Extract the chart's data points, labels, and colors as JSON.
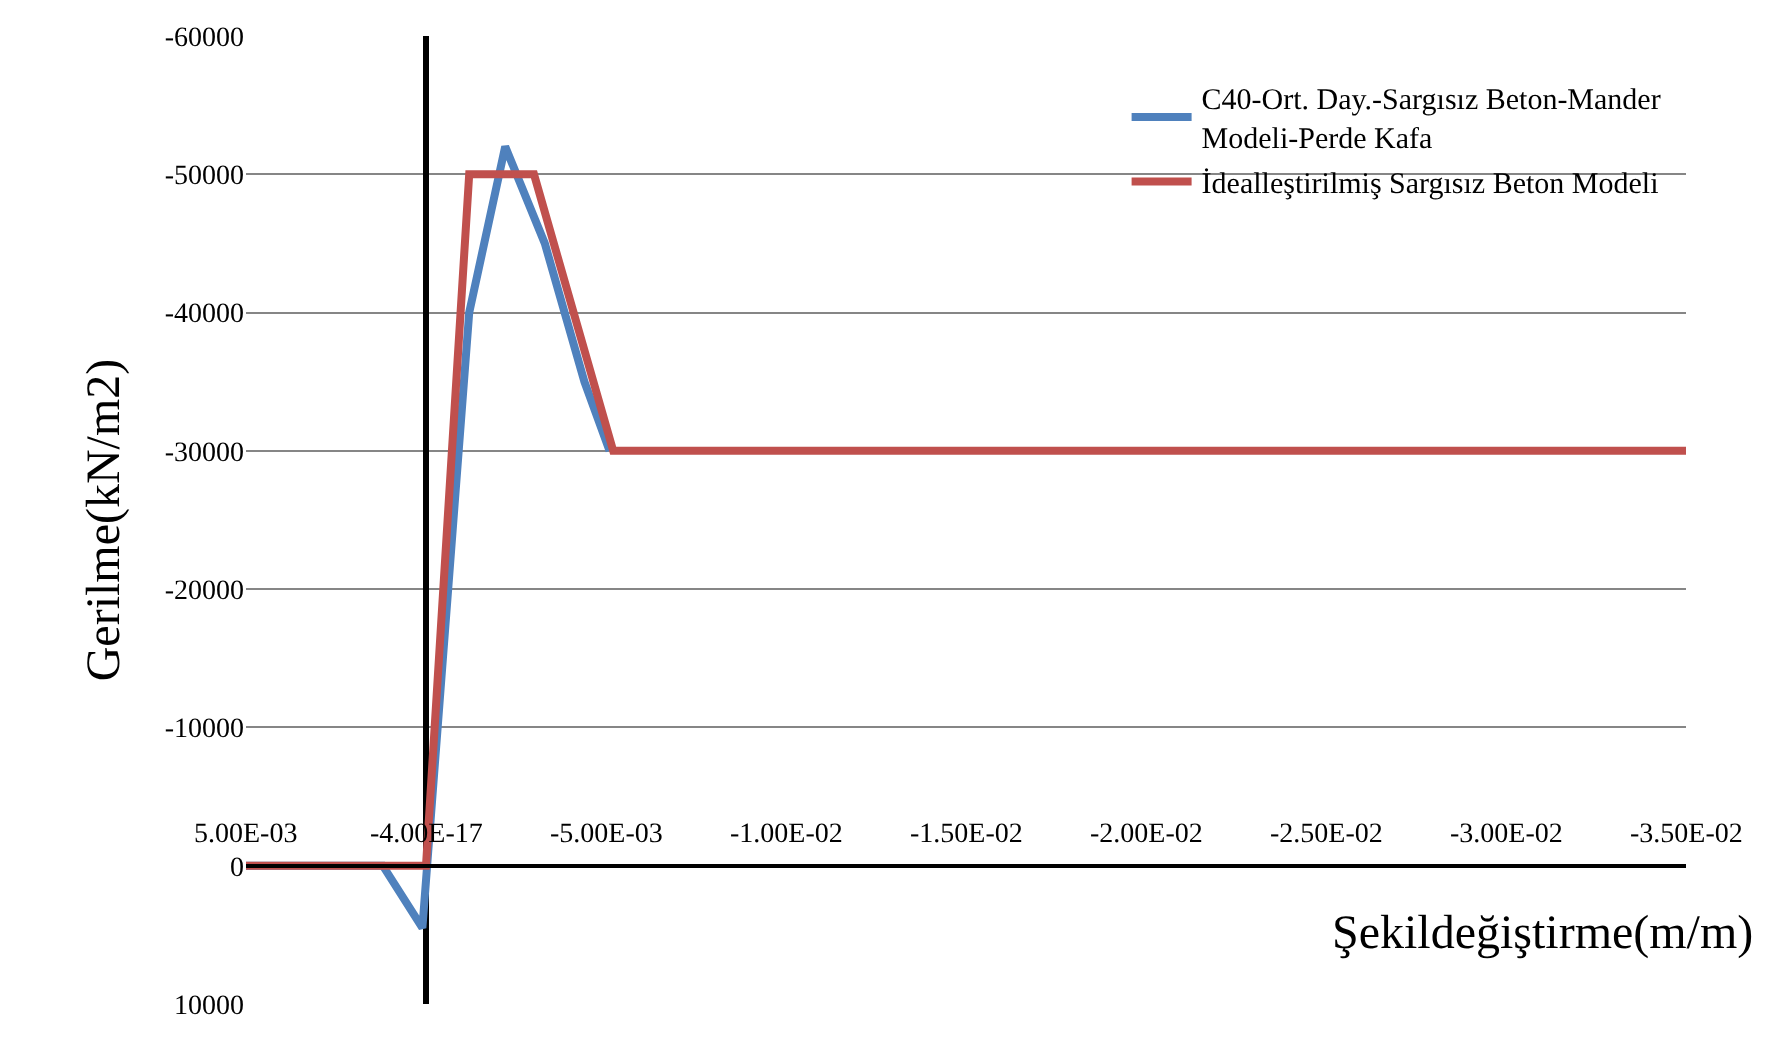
{
  "chart_data": {
    "type": "line",
    "xlabel": "Şekildeğiştirme(m/m)",
    "ylabel": "Gerilme(kN/m2)",
    "xlim": [
      0.005,
      -0.035
    ],
    "ylim": [
      10000,
      -60000
    ],
    "xticks": [
      {
        "value": 0.005,
        "label": "5.00E-03"
      },
      {
        "value": 0,
        "label": "-4.00E-17"
      },
      {
        "value": -0.005,
        "label": "-5.00E-03"
      },
      {
        "value": -0.01,
        "label": "-1.00E-02"
      },
      {
        "value": -0.015,
        "label": "-1.50E-02"
      },
      {
        "value": -0.02,
        "label": "-2.00E-02"
      },
      {
        "value": -0.025,
        "label": "-2.50E-02"
      },
      {
        "value": -0.03,
        "label": "-3.00E-02"
      },
      {
        "value": -0.035,
        "label": "-3.50E-02"
      }
    ],
    "yticks": [
      10000,
      0,
      -10000,
      -20000,
      -30000,
      -40000,
      -50000,
      -60000
    ],
    "grid": "y",
    "legend": "top right",
    "marker": "none",
    "line_style": "solid",
    "series": [
      {
        "name": "C40-Ort. Day.-Sargısız Beton-Mander Modeli-Perde Kafa",
        "color": "#4f81bd",
        "x": [
          0.005,
          0.0012,
          0.0001,
          -0.0012,
          -0.0022,
          -0.0033,
          -0.0044,
          -0.0051
        ],
        "values": [
          0,
          0,
          4500,
          -40000,
          -52000,
          -45000,
          -35000,
          -30000
        ]
      },
      {
        "name": "İdealleştirilmiş Sargısız Beton Modeli",
        "color": "#c0504d",
        "x": [
          0.005,
          0,
          -0.0012,
          -0.003,
          -0.0052,
          -0.035
        ],
        "values": [
          0,
          0,
          -50000,
          -50000,
          -30000,
          -30000
        ]
      }
    ]
  }
}
